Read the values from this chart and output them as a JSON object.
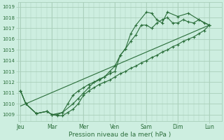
{
  "xlabel": "Pression niveau de la mer( hPa )",
  "xtick_labels": [
    "Jeu",
    "Mar",
    "Mer",
    "Ven",
    "Sam",
    "Dim",
    "Lun"
  ],
  "xtick_positions": [
    0,
    36,
    72,
    108,
    144,
    180,
    216
  ],
  "xlim": [
    -3,
    230
  ],
  "ylim": [
    1008.4,
    1019.4
  ],
  "yticks": [
    1009,
    1010,
    1011,
    1012,
    1013,
    1014,
    1015,
    1016,
    1017,
    1018,
    1019
  ],
  "bg_color": "#cdeee0",
  "grid_color": "#aacfba",
  "line_color": "#2a6e3a",
  "line1_x": [
    0,
    6,
    18,
    30,
    36,
    42,
    48,
    54,
    60,
    66,
    72,
    78,
    84,
    90,
    96,
    102,
    108,
    114,
    120,
    126,
    132,
    138,
    144,
    150,
    156,
    162,
    168,
    174,
    180,
    186,
    192,
    198,
    204,
    210,
    216
  ],
  "line1_y": [
    1011.2,
    1010.0,
    1009.1,
    1009.3,
    1009.0,
    1008.9,
    1008.9,
    1009.2,
    1009.5,
    1010.0,
    1010.8,
    1011.2,
    1011.5,
    1011.8,
    1012.0,
    1012.2,
    1012.5,
    1012.8,
    1013.0,
    1013.3,
    1013.5,
    1013.8,
    1014.0,
    1014.3,
    1014.5,
    1014.8,
    1015.0,
    1015.3,
    1015.5,
    1015.8,
    1016.0,
    1016.2,
    1016.5,
    1016.8,
    1017.3
  ],
  "line2_x": [
    0,
    6,
    18,
    30,
    36,
    48,
    60,
    66,
    72,
    78,
    84,
    90,
    96,
    102,
    108,
    114,
    120,
    126,
    132,
    138,
    144,
    150,
    156,
    162,
    168,
    174,
    180,
    186,
    192,
    198,
    204,
    210,
    216
  ],
  "line2_y": [
    1011.2,
    1010.0,
    1009.1,
    1009.3,
    1009.0,
    1009.2,
    1010.0,
    1010.5,
    1011.0,
    1011.5,
    1012.0,
    1012.2,
    1012.5,
    1013.0,
    1013.5,
    1014.5,
    1015.1,
    1015.8,
    1016.4,
    1017.3,
    1017.3,
    1017.0,
    1017.5,
    1017.8,
    1018.0,
    1017.5,
    1017.5,
    1017.8,
    1017.6,
    1017.5,
    1017.8,
    1017.5,
    1017.3
  ],
  "line3_x": [
    0,
    6,
    18,
    30,
    36,
    42,
    48,
    54,
    60,
    66,
    72,
    78,
    84,
    90,
    96,
    102,
    108,
    114,
    120,
    126,
    132,
    144,
    150,
    156,
    162,
    168,
    180,
    192,
    204,
    216
  ],
  "line3_y": [
    1011.2,
    1010.0,
    1009.1,
    1009.3,
    1009.0,
    1009.0,
    1009.2,
    1010.0,
    1010.8,
    1011.2,
    1011.5,
    1011.8,
    1012.0,
    1012.3,
    1012.5,
    1012.8,
    1013.0,
    1014.5,
    1015.1,
    1016.5,
    1017.3,
    1018.5,
    1018.4,
    1017.8,
    1017.5,
    1018.5,
    1018.1,
    1018.4,
    1017.8,
    1017.3
  ],
  "trend_x": [
    0,
    216
  ],
  "trend_y": [
    1009.8,
    1017.3
  ]
}
